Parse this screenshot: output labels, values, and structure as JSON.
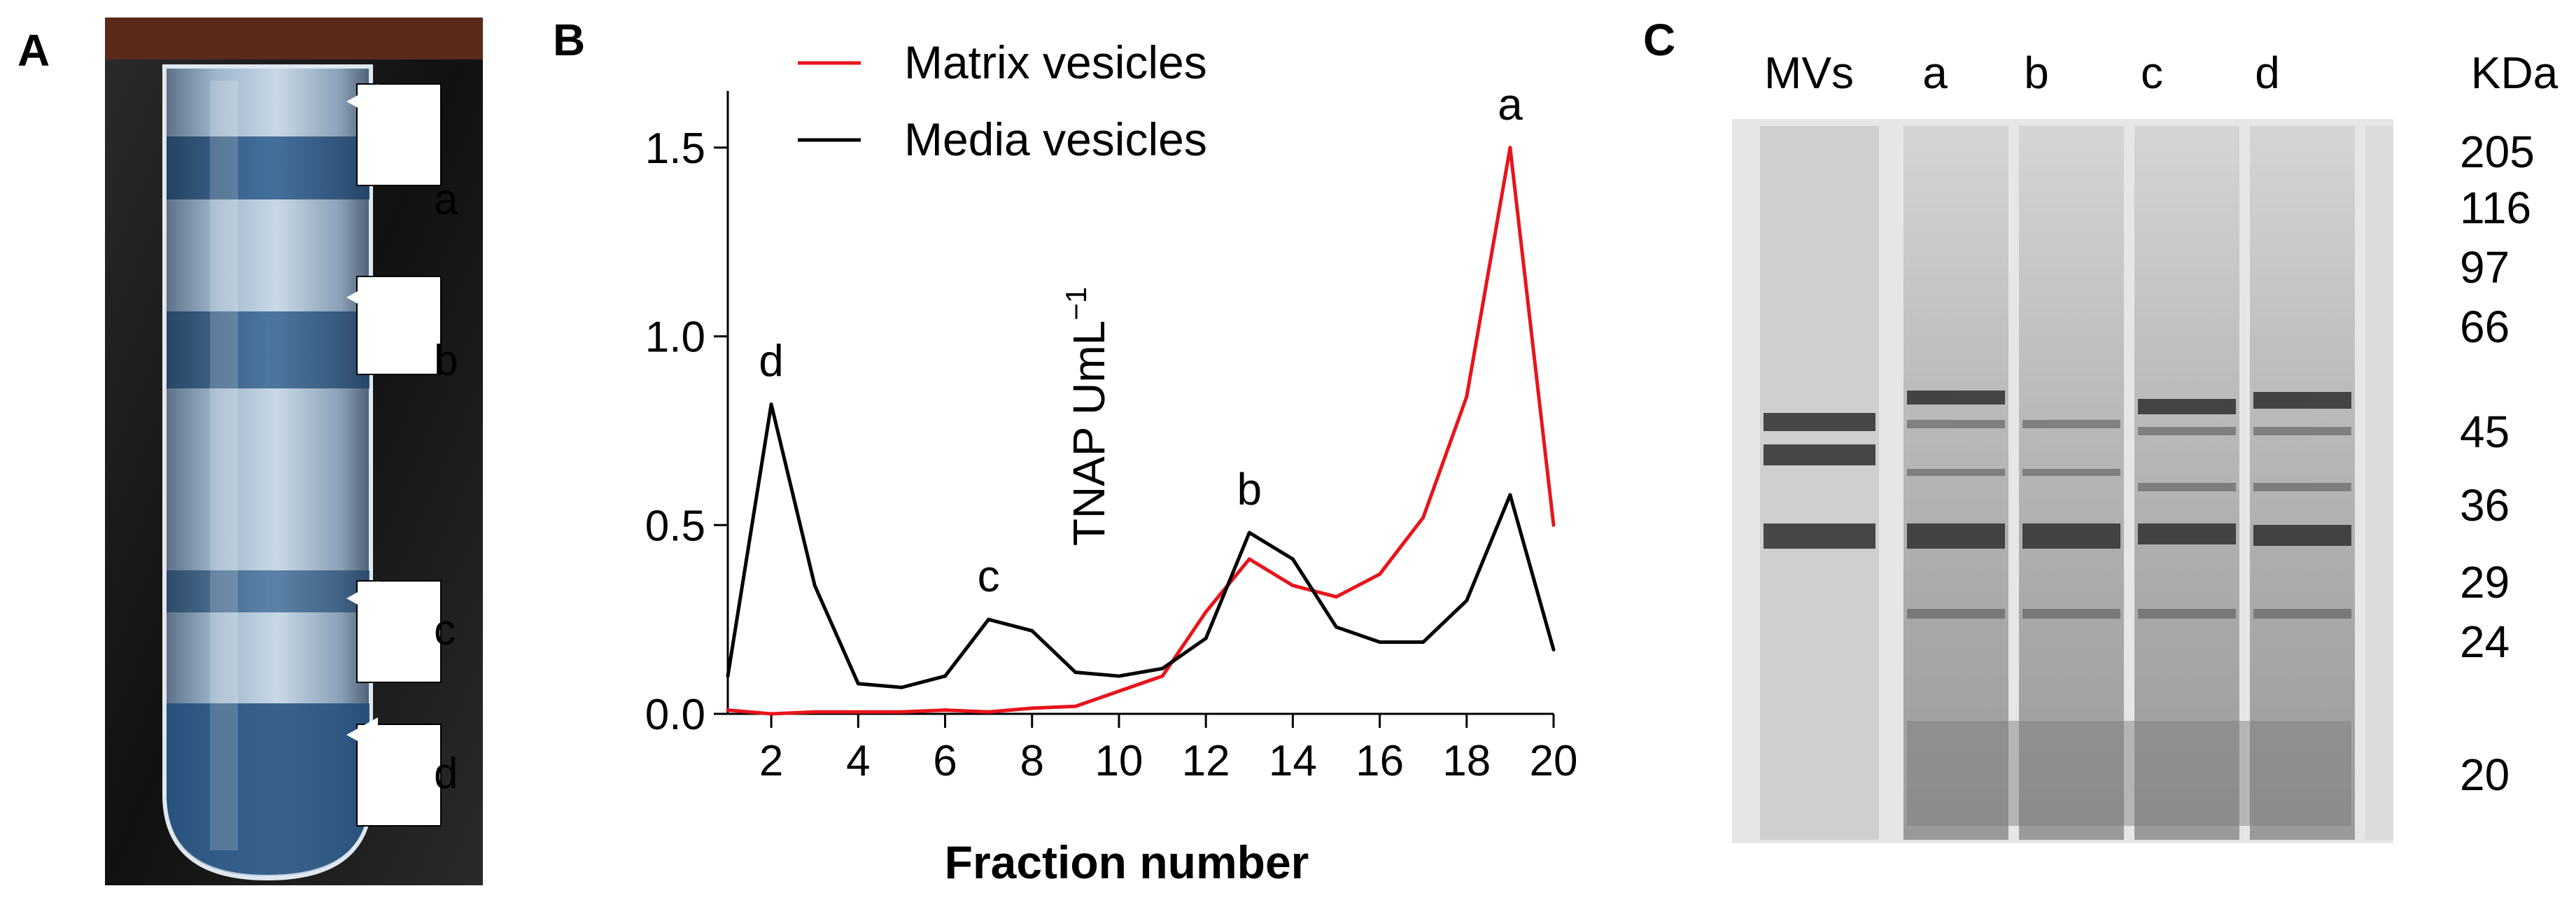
{
  "panels": {
    "a": {
      "letter": "A",
      "arrow_labels": [
        "a",
        "b",
        "c",
        "d"
      ]
    },
    "b": {
      "letter": "B"
    },
    "c": {
      "letter": "C",
      "lanes": [
        "MVs",
        "a",
        "b",
        "c",
        "d"
      ],
      "unit": "KDa",
      "markers": [
        "205",
        "116",
        "97",
        "66",
        "45",
        "36",
        "29",
        "24",
        "20"
      ]
    }
  },
  "chart_data": {
    "type": "line",
    "title": "",
    "xlabel": "Fraction number",
    "ylabel": "TNAP UmL",
    "ylabel_superscript": "−1",
    "xlim": [
      1,
      20
    ],
    "ylim": [
      0,
      1.65
    ],
    "x_ticks": [
      2,
      4,
      6,
      8,
      10,
      12,
      14,
      16,
      18,
      20
    ],
    "y_ticks": [
      0.0,
      0.5,
      1.0,
      1.5
    ],
    "y_tick_labels": [
      "0.0",
      "0.5",
      "1.0",
      "1.5"
    ],
    "legend_position": "top-left",
    "series": [
      {
        "name": "Matrix vesicles",
        "color": "#e8141b",
        "x": [
          1,
          2,
          3,
          4,
          5,
          6,
          7,
          8,
          9,
          10,
          11,
          12,
          13,
          14,
          15,
          16,
          17,
          18,
          19,
          20
        ],
        "values": [
          0.01,
          0.0,
          0.005,
          0.005,
          0.005,
          0.01,
          0.005,
          0.015,
          0.02,
          0.06,
          0.1,
          0.27,
          0.41,
          0.34,
          0.31,
          0.37,
          0.52,
          0.84,
          1.5,
          0.5
        ]
      },
      {
        "name": "Media vesicles",
        "color": "#000000",
        "x": [
          1,
          2,
          3,
          4,
          5,
          6,
          7,
          8,
          9,
          10,
          11,
          12,
          13,
          14,
          15,
          16,
          17,
          18,
          19,
          20
        ],
        "values": [
          0.1,
          0.82,
          0.34,
          0.08,
          0.07,
          0.1,
          0.25,
          0.22,
          0.11,
          0.1,
          0.12,
          0.2,
          0.48,
          0.41,
          0.23,
          0.19,
          0.19,
          0.3,
          0.58,
          0.17
        ]
      }
    ],
    "annotations": [
      {
        "text": "d",
        "x": 2,
        "y": 0.82
      },
      {
        "text": "c",
        "x": 7,
        "y": 0.25
      },
      {
        "text": "b",
        "x": 13,
        "y": 0.48
      },
      {
        "text": "a",
        "x": 19,
        "y": 1.5
      }
    ]
  }
}
